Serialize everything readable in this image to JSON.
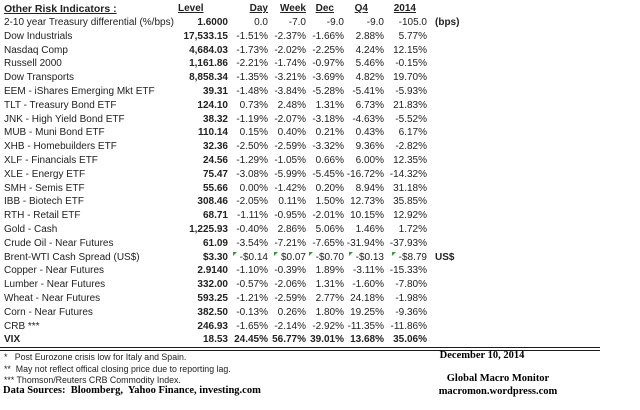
{
  "chart_data": {
    "type": "table",
    "title": "Other Risk Indicators :",
    "columns": [
      "Level",
      "Day",
      "Week",
      "Dec",
      "Q4",
      "2014"
    ],
    "rows": [
      {
        "name": "2-10 year Treasury differential (%/bps)",
        "level": "1.6000",
        "day": "0.0",
        "week": "-7.0",
        "dec": "-9.0",
        "q4": "-9.0",
        "y2014": "-105.0",
        "note": "(bps)"
      },
      {
        "name": "Dow Industrials",
        "level": "17,533.15",
        "day": "-1.51%",
        "week": "-2.37%",
        "dec": "-1.66%",
        "q4": "2.88%",
        "y2014": "5.77%",
        "note": ""
      },
      {
        "name": "Nasdaq Comp",
        "level": "4,684.03",
        "day": "-1.73%",
        "week": "-2.02%",
        "dec": "-2.25%",
        "q4": "4.24%",
        "y2014": "12.15%",
        "note": ""
      },
      {
        "name": "Russell 2000",
        "level": "1,161.86",
        "day": "-2.21%",
        "week": "-1.74%",
        "dec": "-0.97%",
        "q4": "5.46%",
        "y2014": "-0.15%",
        "note": ""
      },
      {
        "name": "Dow Transports",
        "level": "8,858.34",
        "day": "-1.35%",
        "week": "-3.21%",
        "dec": "-3.69%",
        "q4": "4.82%",
        "y2014": "19.70%",
        "note": ""
      },
      {
        "name": "EEM - iShares Emerging Mkt ETF",
        "level": "39.31",
        "day": "-1.48%",
        "week": "-3.84%",
        "dec": "-5.28%",
        "q4": "-5.41%",
        "y2014": "-5.93%",
        "note": ""
      },
      {
        "name": "TLT - Treasury Bond ETF",
        "level": "124.10",
        "day": "0.73%",
        "week": "2.48%",
        "dec": "1.31%",
        "q4": "6.73%",
        "y2014": "21.83%",
        "note": ""
      },
      {
        "name": "JNK - High Yield Bond ETF",
        "level": "38.32",
        "day": "-1.19%",
        "week": "-2.07%",
        "dec": "-3.18%",
        "q4": "-4.63%",
        "y2014": "-5.52%",
        "note": ""
      },
      {
        "name": "MUB - Muni Bond ETF",
        "level": "110.14",
        "day": "0.15%",
        "week": "0.40%",
        "dec": "0.21%",
        "q4": "0.43%",
        "y2014": "6.17%",
        "note": ""
      },
      {
        "name": "XHB - Homebuilders ETF",
        "level": "32.36",
        "day": "-2.50%",
        "week": "-2.59%",
        "dec": "-3.32%",
        "q4": "9.36%",
        "y2014": "-2.82%",
        "note": ""
      },
      {
        "name": "XLF - Financials ETF",
        "level": "24.56",
        "day": "-1.29%",
        "week": "-1.05%",
        "dec": "0.66%",
        "q4": "6.00%",
        "y2014": "12.35%",
        "note": ""
      },
      {
        "name": "XLE - Energy ETF",
        "level": "75.47",
        "day": "-3.08%",
        "week": "-5.99%",
        "dec": "-5.45%",
        "q4": "-16.72%",
        "y2014": "-14.32%",
        "note": ""
      },
      {
        "name": "SMH - Semis ETF",
        "level": "55.66",
        "day": "0.00%",
        "week": "-1.42%",
        "dec": "0.20%",
        "q4": "8.94%",
        "y2014": "31.18%",
        "note": ""
      },
      {
        "name": "IBB - Biotech ETF",
        "level": "308.46",
        "day": "-2.05%",
        "week": "0.11%",
        "dec": "1.50%",
        "q4": "12.73%",
        "y2014": "35.85%",
        "note": ""
      },
      {
        "name": "RTH - Retail ETF",
        "level": "68.71",
        "day": "-1.11%",
        "week": "-0.95%",
        "dec": "-2.01%",
        "q4": "10.15%",
        "y2014": "12.92%",
        "note": ""
      },
      {
        "name": "Gold - Cash",
        "level": "1,225.93",
        "day": "-0.40%",
        "week": "2.86%",
        "dec": "5.06%",
        "q4": "1.46%",
        "y2014": "1.72%",
        "note": ""
      },
      {
        "name": "Crude Oil - Near Futures",
        "level": "61.09",
        "day": "-3.54%",
        "week": "-7.21%",
        "dec": "-7.65%",
        "q4": "-31.94%",
        "y2014": "-37.93%",
        "note": ""
      },
      {
        "name": "Brent-WTI Cash Spread (US$)",
        "level": "$3.30",
        "day": "-$0.14",
        "week": "$0.07",
        "dec": "-$0.70",
        "q4": "-$0.13",
        "y2014": "-$8.79",
        "note": "US$",
        "flags": true
      },
      {
        "name": "Copper - Near Futures",
        "level": "2.9140",
        "day": "-1.10%",
        "week": "-0.39%",
        "dec": "1.89%",
        "q4": "-3.11%",
        "y2014": "-15.33%",
        "note": ""
      },
      {
        "name": "Lumber - Near Futures",
        "level": "332.00",
        "day": "-0.57%",
        "week": "-2.06%",
        "dec": "1.31%",
        "q4": "-1.60%",
        "y2014": "-7.80%",
        "note": ""
      },
      {
        "name": "Wheat - Near Futures",
        "level": "593.25",
        "day": "-1.21%",
        "week": "-2.59%",
        "dec": "2.77%",
        "q4": "24.18%",
        "y2014": "-1.98%",
        "note": ""
      },
      {
        "name": "Corn - Near Futures",
        "level": "382.50",
        "day": "-0.13%",
        "week": "0.26%",
        "dec": "1.80%",
        "q4": "19.25%",
        "y2014": "-9.36%",
        "note": ""
      },
      {
        "name": "CRB ***",
        "level": "246.93",
        "day": "-1.65%",
        "week": "-2.14%",
        "dec": "-2.92%",
        "q4": "-11.35%",
        "y2014": "-11.86%",
        "note": ""
      },
      {
        "name": "VIX",
        "level": "18.53",
        "day": "24.45%",
        "week": "56.77%",
        "dec": "39.01%",
        "q4": "13.68%",
        "y2014": "35.06%",
        "note": "",
        "bold": true
      }
    ]
  },
  "footnotes": {
    "fn1": "*   Post Eurozone crisis low for Italy and Spain.",
    "fn2": "**  May not reflect offical closing price due to reporting lag.",
    "fn3": "*** Thomson/Reuters CRB Commodity Index.",
    "data_sources": "Data Sources:  Bloomberg,  Yahoo Finance, investing.com"
  },
  "report_date": "December 10, 2014",
  "brand": {
    "name": "Global Macro Monitor",
    "url": "macromon.wordpress.com"
  },
  "colors": {
    "flag_green": "#359a35",
    "text": "#222222",
    "rule": "#1a1a1a"
  }
}
